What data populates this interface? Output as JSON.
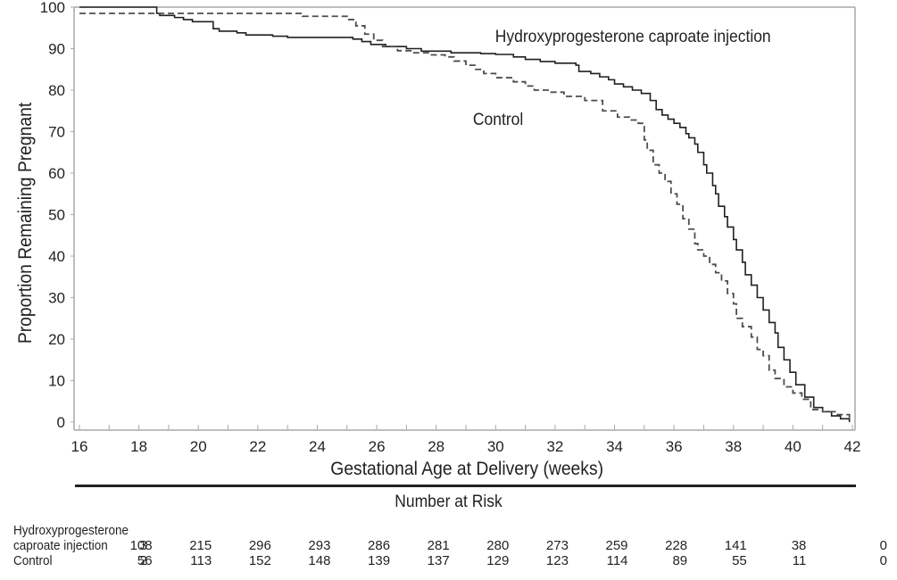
{
  "chart_data": {
    "type": "line",
    "subtype": "kaplan-meier step",
    "title": "",
    "xlabel": "Gestational Age at Delivery (weeks)",
    "ylabel": "Proportion Remaining Pregnant",
    "xlim": [
      16,
      42
    ],
    "ylim": [
      0,
      100
    ],
    "xticks": [
      16,
      18,
      20,
      22,
      24,
      26,
      28,
      30,
      32,
      34,
      36,
      38,
      40,
      42
    ],
    "yticks": [
      0,
      10,
      20,
      30,
      40,
      50,
      60,
      70,
      80,
      90,
      100
    ],
    "grid": false,
    "annotations": [
      {
        "text": "Hydroxyprogesterone caproate injection",
        "series": "Hydroxyprogesterone caproate injection",
        "at": [
          33.7,
          92
        ]
      },
      {
        "text": "Control",
        "series": "Control",
        "at": [
          30.3,
          72
        ]
      }
    ],
    "series": [
      {
        "name": "Hydroxyprogesterone caproate injection",
        "style": "solid",
        "color": "#231f20",
        "x": [
          16,
          18.6,
          18.7,
          19.2,
          19.5,
          19.8,
          20.5,
          20.7,
          21.3,
          21.6,
          22.5,
          23.0,
          25.0,
          25.2,
          25.5,
          25.8,
          26.3,
          27.0,
          27.5,
          28.5,
          29.5,
          30.0,
          30.6,
          31.0,
          31.5,
          32.0,
          32.7,
          32.8,
          33.2,
          33.5,
          33.8,
          34.0,
          34.3,
          34.6,
          34.9,
          35.2,
          35.4,
          35.6,
          35.8,
          36.0,
          36.2,
          36.4,
          36.5,
          36.7,
          36.8,
          37.0,
          37.1,
          37.3,
          37.4,
          37.5,
          37.7,
          37.8,
          38.0,
          38.1,
          38.3,
          38.4,
          38.6,
          38.8,
          39.0,
          39.2,
          39.4,
          39.5,
          39.7,
          39.9,
          40.1,
          40.4,
          40.7,
          41.0,
          41.3,
          41.6,
          41.9
        ],
        "y": [
          100,
          98.5,
          98.0,
          97.5,
          97.0,
          96.5,
          94.8,
          94.2,
          93.8,
          93.3,
          93.0,
          92.7,
          92.7,
          92.3,
          91.7,
          91.0,
          90.5,
          90.0,
          89.4,
          89.0,
          88.8,
          88.6,
          88.0,
          87.4,
          86.9,
          86.5,
          86.0,
          84.5,
          84.0,
          83.2,
          82.5,
          81.5,
          80.8,
          80.0,
          79.2,
          77.5,
          75.3,
          74.0,
          73.0,
          72.0,
          71.0,
          69.5,
          68.5,
          67.0,
          65.0,
          62.0,
          60.0,
          57.0,
          55.0,
          52.0,
          49.5,
          47.0,
          44.0,
          41.5,
          38.5,
          35.5,
          33.0,
          30.0,
          27.0,
          24.0,
          21.5,
          18.0,
          15.0,
          12.0,
          9.0,
          6.0,
          3.5,
          2.5,
          1.5,
          0.8,
          0
        ],
        "number_at_risk": [
          3,
          108,
          215,
          296,
          293,
          286,
          281,
          280,
          273,
          259,
          228,
          141,
          38,
          0
        ]
      },
      {
        "name": "Control",
        "style": "dashed",
        "color": "#4d4d4d",
        "x": [
          16,
          23.3,
          23.5,
          24.7,
          25.0,
          25.3,
          25.6,
          25.9,
          26.2,
          26.7,
          27.2,
          27.8,
          28.3,
          28.6,
          29.0,
          29.3,
          29.6,
          30.0,
          30.6,
          31.0,
          31.3,
          31.8,
          32.3,
          33.0,
          33.2,
          33.6,
          34.1,
          34.5,
          34.8,
          35.0,
          35.1,
          35.3,
          35.5,
          35.7,
          35.9,
          36.1,
          36.3,
          36.5,
          36.7,
          36.8,
          37.0,
          37.2,
          37.4,
          37.6,
          37.8,
          38.0,
          38.1,
          38.3,
          38.6,
          38.8,
          39.0,
          39.2,
          39.4,
          39.7,
          40.0,
          40.3,
          40.6,
          41.0,
          41.5,
          41.9
        ],
        "y": [
          98.5,
          98.5,
          97.8,
          97.8,
          97.0,
          95.5,
          93.5,
          92.0,
          90.5,
          89.5,
          89.0,
          88.5,
          88.0,
          87.0,
          86.0,
          85.0,
          84.0,
          83.0,
          82.0,
          81.0,
          80.0,
          79.5,
          78.5,
          77.5,
          77.5,
          75.0,
          73.5,
          72.8,
          72.0,
          68.0,
          65.5,
          62.0,
          60.0,
          58.0,
          55.0,
          52.5,
          49.0,
          46.5,
          43.0,
          41.5,
          40.0,
          38.0,
          36.0,
          34.0,
          31.0,
          28.5,
          25.0,
          23.0,
          20.5,
          17.5,
          16.0,
          12.5,
          10.5,
          8.5,
          7.0,
          5.5,
          3.0,
          2.5,
          1.8,
          0.8
        ],
        "number_at_risk": [
          2,
          56,
          113,
          152,
          148,
          139,
          137,
          129,
          123,
          114,
          89,
          55,
          11,
          0
        ]
      }
    ],
    "risk_table": {
      "title": "Number at Risk",
      "rows": [
        {
          "label_line1": "Hydroxyprogesterone",
          "label_line2": "caproate injection",
          "values": [
            "3",
            "108",
            "215",
            "296",
            "293",
            "286",
            "281",
            "280",
            "273",
            "259",
            "228",
            "141",
            "38",
            "0"
          ]
        },
        {
          "label_line1": "",
          "label_line2": "Control",
          "values": [
            "2",
            "56",
            "113",
            "152",
            "148",
            "139",
            "137",
            "129",
            "123",
            "114",
            "89",
            "55",
            "11",
            "0"
          ]
        }
      ]
    }
  }
}
